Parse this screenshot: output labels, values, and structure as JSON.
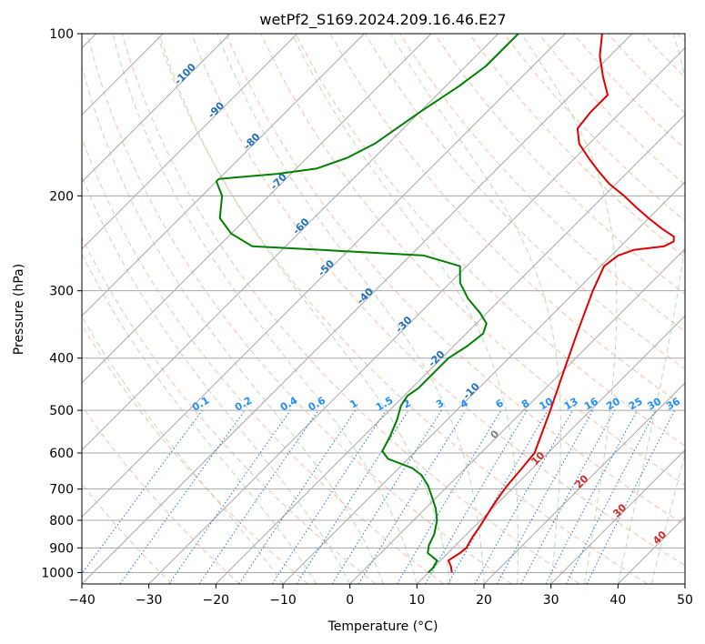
{
  "chart_data": {
    "type": "skew-t",
    "title": "wetPf2_S169.2024.209.16.46.E27",
    "xlabel": "Temperature (°C)",
    "ylabel": "Pressure (hPa)",
    "xlim": [
      -40,
      50
    ],
    "ylim": [
      1050,
      100
    ],
    "y_scale": "log",
    "grid": true,
    "x_ticks": [
      "-40",
      "-30",
      "-20",
      "-10",
      "0",
      "10",
      "20",
      "30",
      "40",
      "50"
    ],
    "y_ticks": [
      "100",
      "200",
      "300",
      "400",
      "500",
      "600",
      "700",
      "800",
      "900",
      "1000"
    ],
    "series": [
      {
        "color": "#e00000",
        "points": [
          [
            13.5,
            1000
          ],
          [
            12.5,
            975
          ],
          [
            11.2,
            950
          ],
          [
            11.8,
            920
          ],
          [
            12.0,
            900
          ],
          [
            11.3,
            860
          ],
          [
            10.8,
            820
          ],
          [
            10.3,
            790
          ],
          [
            9.8,
            760
          ],
          [
            9.2,
            720
          ],
          [
            8.8,
            690
          ],
          [
            8.4,
            640
          ],
          [
            8.0,
            600
          ],
          [
            4.0,
            500
          ],
          [
            0.0,
            420
          ],
          [
            -3.5,
            360
          ],
          [
            -7.5,
            300
          ],
          [
            -9.5,
            270
          ],
          [
            -9.0,
            258
          ],
          [
            -7.5,
            252
          ],
          [
            -3.5,
            248
          ],
          [
            -2.8,
            243
          ],
          [
            -3.5,
            238
          ],
          [
            -6.5,
            230
          ],
          [
            -10.0,
            220
          ],
          [
            -13.5,
            210
          ],
          [
            -17.0,
            200
          ],
          [
            -21.0,
            190
          ],
          [
            -24.5,
            180
          ],
          [
            -28.0,
            170
          ],
          [
            -31.5,
            160
          ],
          [
            -34.0,
            150
          ],
          [
            -34.5,
            140
          ],
          [
            -34.5,
            130
          ],
          [
            -38.0,
            120
          ],
          [
            -41.5,
            110
          ],
          [
            -44.5,
            100
          ]
        ]
      },
      {
        "color": "#008000",
        "points": [
          [
            10.0,
            1000
          ],
          [
            10.0,
            980
          ],
          [
            9.5,
            950
          ],
          [
            7.0,
            920
          ],
          [
            6.0,
            890
          ],
          [
            5.2,
            850
          ],
          [
            3.5,
            800
          ],
          [
            1.5,
            760
          ],
          [
            -1.0,
            720
          ],
          [
            -3.0,
            690
          ],
          [
            -5.5,
            660
          ],
          [
            -8.0,
            640
          ],
          [
            -13.0,
            615
          ],
          [
            -15.0,
            595
          ],
          [
            -16.0,
            560
          ],
          [
            -17.5,
            520
          ],
          [
            -19.0,
            490
          ],
          [
            -19.5,
            470
          ],
          [
            -19.0,
            455
          ],
          [
            -19.0,
            440
          ],
          [
            -19.0,
            420
          ],
          [
            -19.0,
            400
          ],
          [
            -18.0,
            380
          ],
          [
            -17.5,
            360
          ],
          [
            -18.5,
            345
          ],
          [
            -21.0,
            330
          ],
          [
            -25.0,
            310
          ],
          [
            -28.5,
            290
          ],
          [
            -31.0,
            270
          ],
          [
            -38.0,
            258
          ],
          [
            -54.0,
            252
          ],
          [
            -65.0,
            248
          ],
          [
            -70.0,
            235
          ],
          [
            -74.0,
            220
          ],
          [
            -77.0,
            200
          ],
          [
            -80.0,
            188
          ],
          [
            -80.0,
            186
          ],
          [
            -72.0,
            182
          ],
          [
            -67.0,
            178
          ],
          [
            -64.0,
            170
          ],
          [
            -62.0,
            160
          ],
          [
            -60.0,
            140
          ],
          [
            -58.0,
            125
          ],
          [
            -57.0,
            115
          ],
          [
            -57.0,
            100
          ]
        ]
      }
    ],
    "dry_adiabat_labels": [
      "-100",
      "-90",
      "-80",
      "-70",
      "-60",
      "-50",
      "-40",
      "-30",
      "-20",
      "-10"
    ],
    "mixing_ratio_labels": [
      "0.1",
      "0.2",
      "0.4",
      "0.6",
      "1",
      "1.5",
      "2",
      "3",
      "4",
      "6",
      "8",
      "10",
      "13",
      "16",
      "20",
      "25",
      "30",
      "36"
    ],
    "moist_adiabat_labels": [
      "0",
      "10",
      "20",
      "30",
      "40"
    ]
  }
}
